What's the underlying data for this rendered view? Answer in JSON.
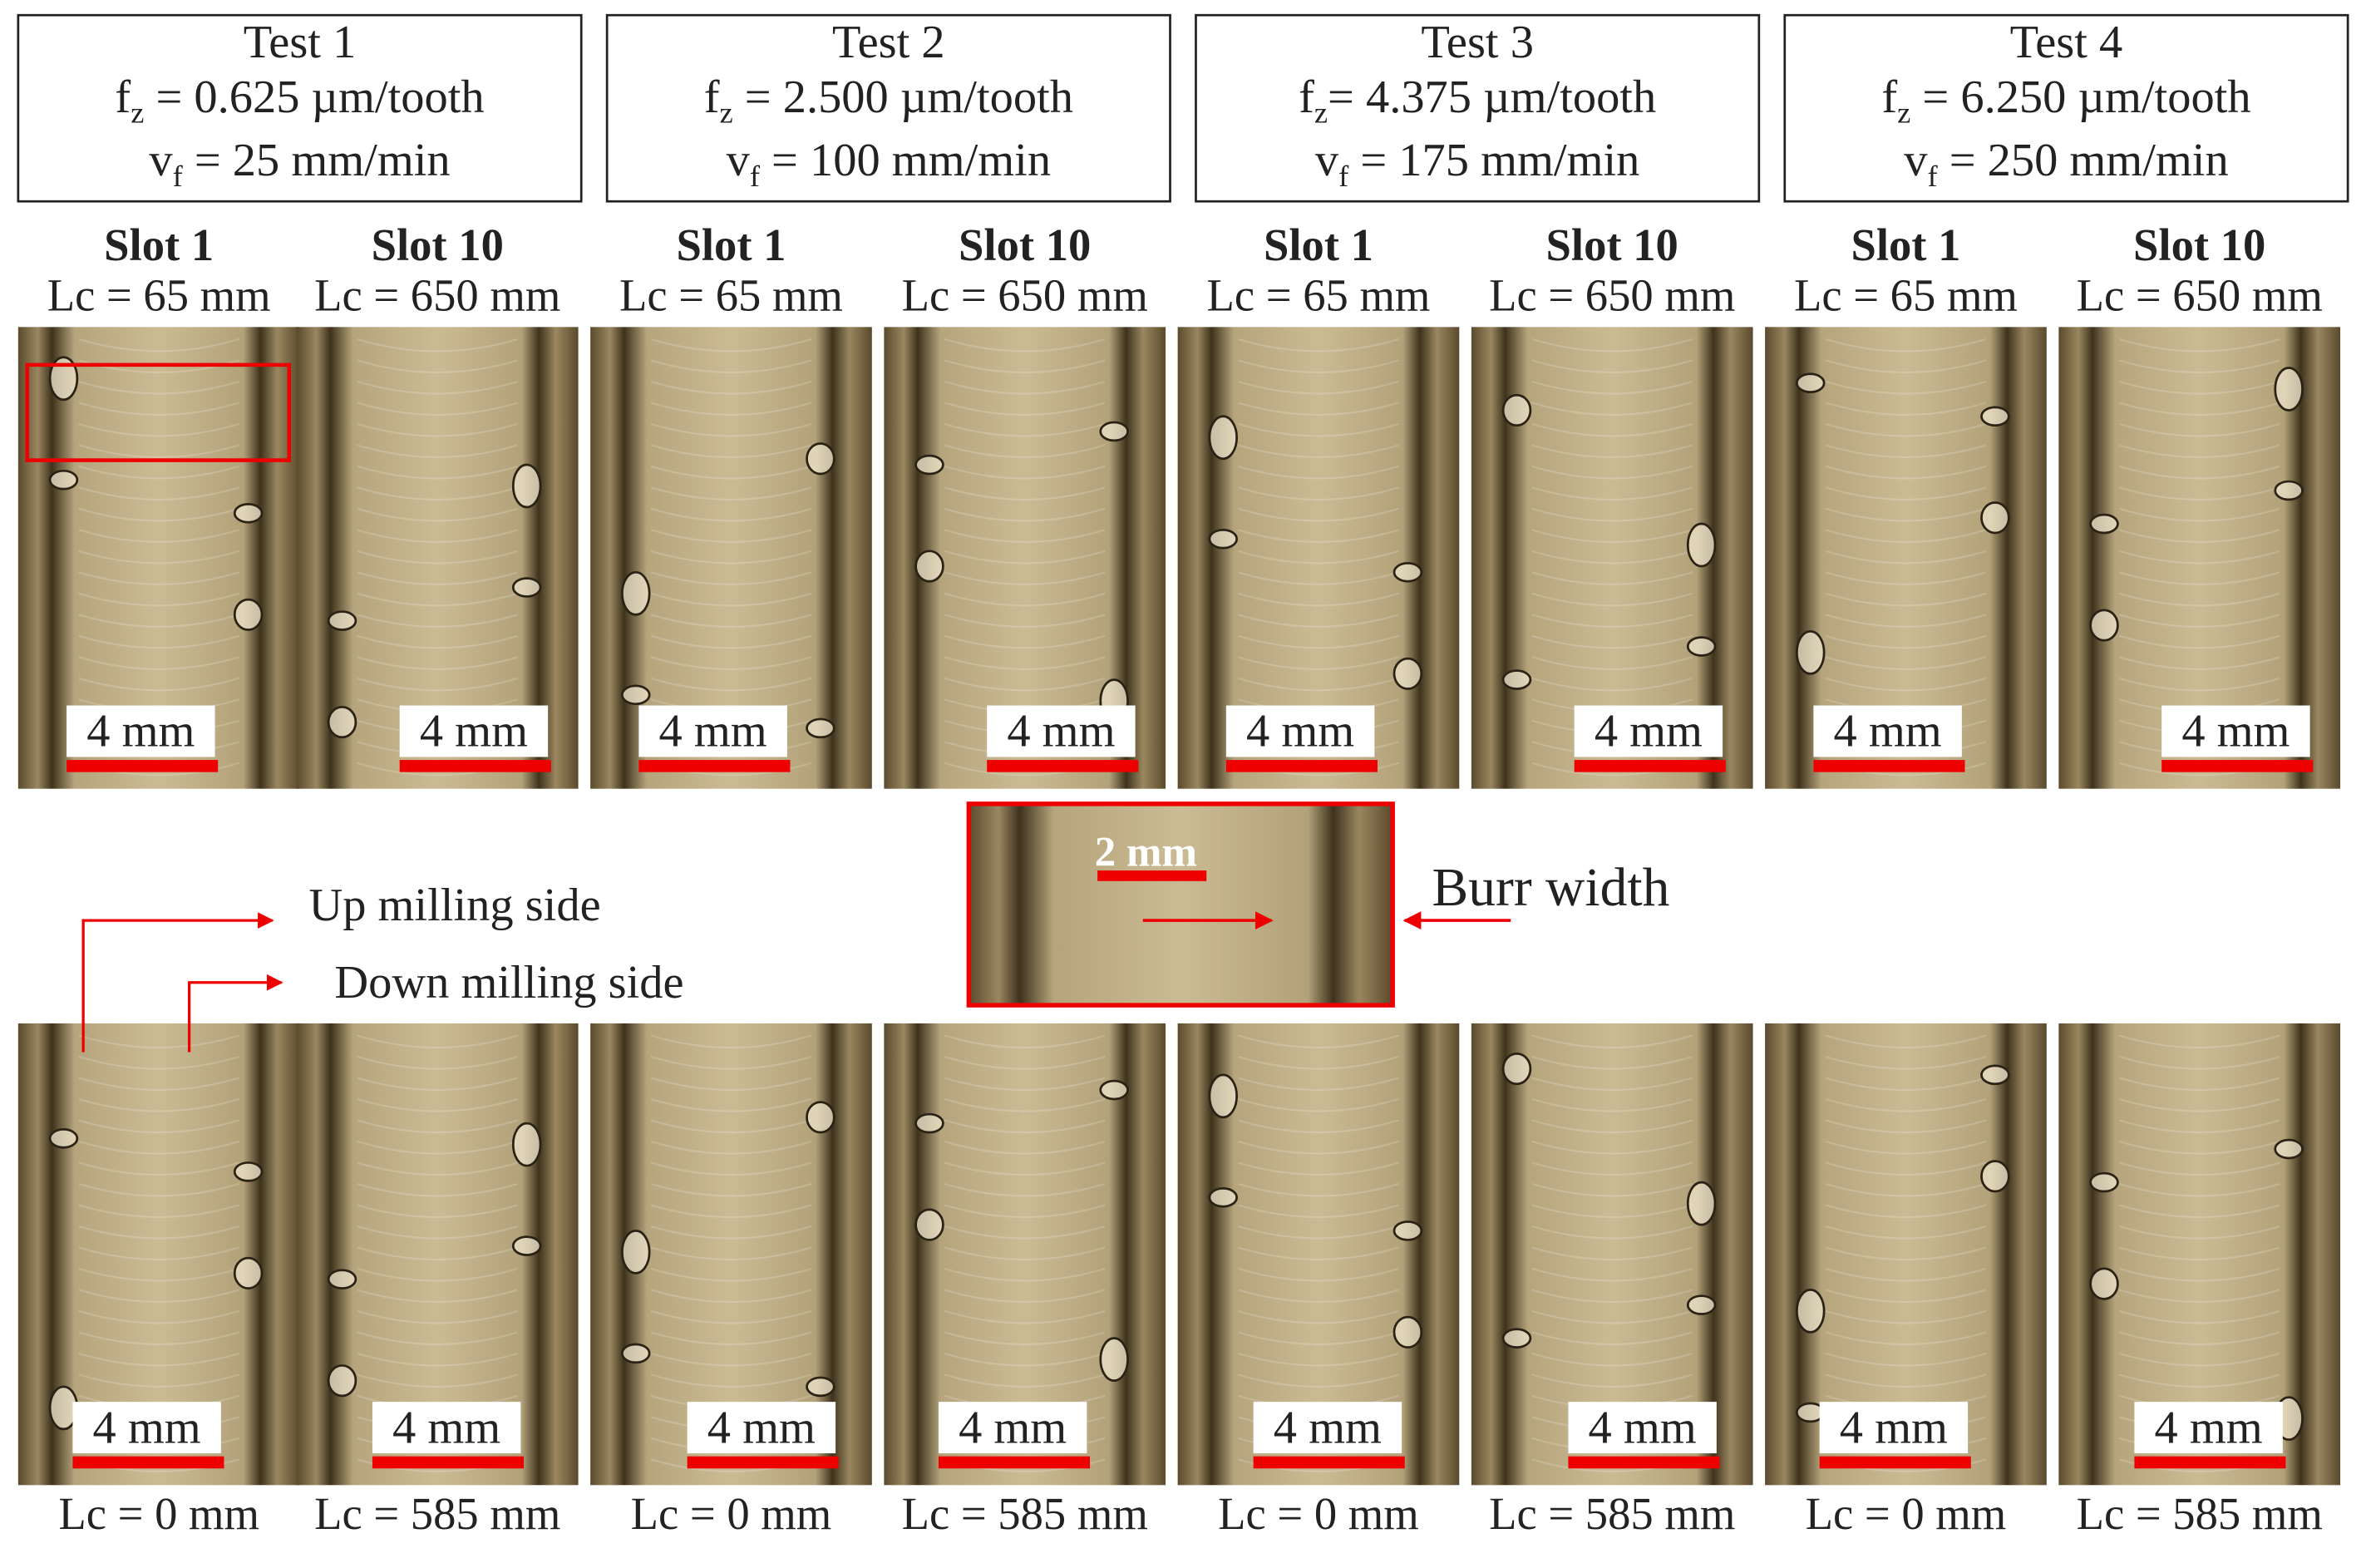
{
  "tests": [
    {
      "title": "Test 1",
      "fz_symbol": "f",
      "fz_subscript": "z",
      "fz_value": " = 0.625 µm/tooth",
      "vf_symbol": "v",
      "vf_subscript": "f",
      "vf_value": " = 25 mm/min"
    },
    {
      "title": "Test 2",
      "fz_symbol": "f",
      "fz_subscript": "z",
      "fz_value": " = 2.500 µm/tooth",
      "vf_symbol": "v",
      "vf_subscript": "f",
      "vf_value": " = 100 mm/min"
    },
    {
      "title": "Test 3",
      "fz_symbol": "f",
      "fz_subscript": "z",
      "fz_value": "= 4.375 µm/tooth",
      "vf_symbol": "v",
      "vf_subscript": "f",
      "vf_value": " = 175 mm/min"
    },
    {
      "title": "Test 4",
      "fz_symbol": "f",
      "fz_subscript": "z",
      "fz_value": " = 6.250 µm/tooth",
      "vf_symbol": "v",
      "vf_subscript": "f",
      "vf_value": " = 250 mm/min"
    }
  ],
  "top_row": [
    {
      "slot": "Slot 1",
      "lc": "Lc = 65 mm",
      "scale": "4 mm"
    },
    {
      "slot": "Slot 10",
      "lc": "Lc = 650 mm",
      "scale": "4 mm"
    },
    {
      "slot": "Slot 1",
      "lc": "Lc = 65 mm",
      "scale": "4 mm"
    },
    {
      "slot": "Slot 10",
      "lc": "Lc = 650 mm",
      "scale": "4 mm"
    },
    {
      "slot": "Slot 1",
      "lc": "Lc = 65 mm",
      "scale": "4 mm"
    },
    {
      "slot": "Slot 10",
      "lc": "Lc = 650 mm",
      "scale": "4 mm"
    },
    {
      "slot": "Slot 1",
      "lc": "Lc = 65 mm",
      "scale": "4 mm"
    },
    {
      "slot": "Slot 10",
      "lc": "Lc = 650 mm",
      "scale": "4 mm"
    }
  ],
  "bottom_row": [
    {
      "scale": "4 mm",
      "lc": "Lc = 0 mm"
    },
    {
      "scale": "4 mm",
      "lc": "Lc = 585 mm"
    },
    {
      "scale": "4 mm",
      "lc": "Lc = 0 mm"
    },
    {
      "scale": "4 mm",
      "lc": "Lc = 585 mm"
    },
    {
      "scale": "4 mm",
      "lc": "Lc = 0 mm"
    },
    {
      "scale": "4 mm",
      "lc": "Lc = 585 mm"
    },
    {
      "scale": "4 mm",
      "lc": "Lc = 0 mm"
    },
    {
      "scale": "4 mm",
      "lc": "Lc = 585 mm"
    }
  ],
  "inset": {
    "scale": "2 mm",
    "label": "Burr width"
  },
  "annotations": {
    "up_milling": "Up milling side",
    "down_milling": "Down milling side"
  }
}
